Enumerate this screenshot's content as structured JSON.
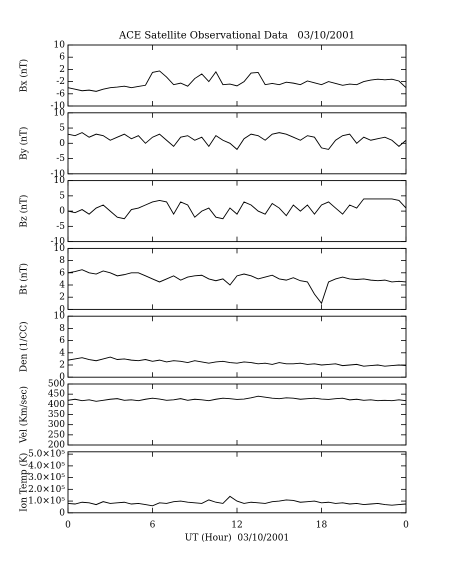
{
  "chart_data": [
    {
      "type": "line",
      "title": "ACE Satellite Observational Data   03/10/2001",
      "ylabel": "Bx (nT)",
      "xlim": [
        0,
        24
      ],
      "ylim": [
        -10,
        10
      ],
      "yticks": [
        -10,
        -6,
        -2,
        2,
        6,
        10
      ],
      "color": "#000000",
      "x": [
        0,
        0.5,
        1,
        1.5,
        2,
        2.5,
        3,
        3.5,
        4,
        4.5,
        5,
        5.5,
        6,
        6.5,
        7,
        7.5,
        8,
        8.5,
        9,
        9.5,
        10,
        10.5,
        11,
        11.5,
        12,
        12.5,
        13,
        13.5,
        14,
        14.5,
        15,
        15.5,
        16,
        16.5,
        17,
        17.5,
        18,
        18.5,
        19,
        19.5,
        20,
        20.5,
        21,
        21.5,
        22,
        22.5,
        23,
        23.5,
        24
      ],
      "values": [
        -4,
        -4.5,
        -5,
        -4.8,
        -5.2,
        -4.5,
        -4,
        -3.8,
        -3.5,
        -4,
        -3.6,
        -3.2,
        1,
        1.5,
        -0.5,
        -3,
        -2.5,
        -3.5,
        -1,
        0.5,
        -2,
        1.2,
        -3,
        -2.8,
        -3.4,
        -2,
        0.8,
        1,
        -3,
        -2.6,
        -3,
        -2.2,
        -2.5,
        -3,
        -1.8,
        -2.4,
        -3,
        -2,
        -2.6,
        -3.2,
        -2.8,
        -3,
        -2,
        -1.5,
        -1.2,
        -1.4,
        -1.2,
        -1.8,
        -4
      ]
    },
    {
      "type": "line",
      "ylabel": "By (nT)",
      "xlim": [
        0,
        24
      ],
      "ylim": [
        -10,
        10
      ],
      "yticks": [
        -10,
        -5,
        0,
        5,
        10
      ],
      "color": "#000000",
      "x": [
        0,
        0.5,
        1,
        1.5,
        2,
        2.5,
        3,
        3.5,
        4,
        4.5,
        5,
        5.5,
        6,
        6.5,
        7,
        7.5,
        8,
        8.5,
        9,
        9.5,
        10,
        10.5,
        11,
        11.5,
        12,
        12.5,
        13,
        13.5,
        14,
        14.5,
        15,
        15.5,
        16,
        16.5,
        17,
        17.5,
        18,
        18.5,
        19,
        19.5,
        20,
        20.5,
        21,
        21.5,
        22,
        22.5,
        23,
        23.5,
        24
      ],
      "values": [
        3,
        2.5,
        3.5,
        2,
        3,
        2.5,
        1,
        2,
        3,
        1.5,
        2.5,
        0,
        2,
        3,
        1,
        -1,
        2,
        2.5,
        1,
        2,
        -1,
        2.5,
        1,
        0,
        -2,
        1.5,
        3,
        2.5,
        1,
        3,
        3.5,
        3,
        2,
        1,
        2.5,
        2,
        -1.5,
        -2,
        1,
        2.5,
        3,
        0,
        2,
        1,
        1.5,
        2,
        1,
        -1,
        1
      ]
    },
    {
      "type": "line",
      "ylabel": "Bz (nT)",
      "xlim": [
        0,
        24
      ],
      "ylim": [
        -10,
        10
      ],
      "yticks": [
        -10,
        -5,
        0,
        5,
        10
      ],
      "color": "#000000",
      "x": [
        0,
        0.5,
        1,
        1.5,
        2,
        2.5,
        3,
        3.5,
        4,
        4.5,
        5,
        5.5,
        6,
        6.5,
        7,
        7.5,
        8,
        8.5,
        9,
        9.5,
        10,
        10.5,
        11,
        11.5,
        12,
        12.5,
        13,
        13.5,
        14,
        14.5,
        15,
        15.5,
        16,
        16.5,
        17,
        17.5,
        18,
        18.5,
        19,
        19.5,
        20,
        20.5,
        21,
        21.5,
        22,
        22.5,
        23,
        23.5,
        24
      ],
      "values": [
        0,
        -0.5,
        0.5,
        -1,
        1,
        2,
        0,
        -2,
        -2.5,
        0.5,
        1,
        2,
        3,
        3.5,
        3,
        -1,
        3,
        2,
        -2,
        0,
        1,
        -2,
        -2.5,
        1,
        -1,
        3,
        2,
        0,
        -1,
        2.5,
        1,
        -1.5,
        2,
        0,
        2,
        -1,
        2,
        3,
        1,
        -1,
        2,
        1,
        4,
        4,
        4,
        4,
        4,
        3.5,
        1
      ]
    },
    {
      "type": "line",
      "ylabel": "Bt (nT)",
      "xlim": [
        0,
        24
      ],
      "ylim": [
        0,
        10
      ],
      "yticks": [
        0,
        2,
        4,
        6,
        8,
        10
      ],
      "color": "#000000",
      "x": [
        0,
        0.5,
        1,
        1.5,
        2,
        2.5,
        3,
        3.5,
        4,
        4.5,
        5,
        5.5,
        6,
        6.5,
        7,
        7.5,
        8,
        8.5,
        9,
        9.5,
        10,
        10.5,
        11,
        11.5,
        12,
        12.5,
        13,
        13.5,
        14,
        14.5,
        15,
        15.5,
        16,
        16.5,
        17,
        17.5,
        18,
        18.5,
        19,
        19.5,
        20,
        20.5,
        21,
        21.5,
        22,
        22.5,
        23,
        23.5,
        24
      ],
      "values": [
        6,
        6.2,
        6.5,
        6,
        5.8,
        6.3,
        6,
        5.5,
        5.7,
        6,
        6,
        5.5,
        5,
        4.5,
        5,
        5.5,
        4.8,
        5.3,
        5.5,
        5.6,
        5,
        4.7,
        5,
        4,
        5.5,
        5.8,
        5.5,
        5,
        5.3,
        5.6,
        5,
        4.8,
        5.2,
        4.7,
        4.5,
        2.5,
        1,
        4.5,
        5,
        5.3,
        5,
        4.9,
        5,
        4.8,
        4.7,
        4.8,
        4.5,
        4.6,
        4.5
      ]
    },
    {
      "type": "line",
      "ylabel": "Den (1/CC)",
      "xlim": [
        0,
        24
      ],
      "ylim": [
        0,
        10
      ],
      "yticks": [
        0,
        2,
        4,
        6,
        8,
        10
      ],
      "color": "#000000",
      "x": [
        0,
        0.5,
        1,
        1.5,
        2,
        2.5,
        3,
        3.5,
        4,
        4.5,
        5,
        5.5,
        6,
        6.5,
        7,
        7.5,
        8,
        8.5,
        9,
        9.5,
        10,
        10.5,
        11,
        11.5,
        12,
        12.5,
        13,
        13.5,
        14,
        14.5,
        15,
        15.5,
        16,
        16.5,
        17,
        17.5,
        18,
        18.5,
        19,
        19.5,
        20,
        20.5,
        21,
        21.5,
        22,
        22.5,
        23,
        23.5,
        24
      ],
      "values": [
        2.8,
        3,
        3.2,
        2.9,
        2.7,
        3,
        3.3,
        2.9,
        3,
        2.8,
        2.7,
        2.9,
        2.6,
        2.8,
        2.5,
        2.7,
        2.6,
        2.4,
        2.7,
        2.5,
        2.3,
        2.5,
        2.6,
        2.4,
        2.3,
        2.5,
        2.4,
        2.2,
        2.3,
        2.1,
        2.4,
        2.2,
        2.2,
        2.3,
        2.1,
        2.2,
        2,
        2.1,
        2.2,
        1.9,
        2,
        2.1,
        1.8,
        1.9,
        2,
        1.8,
        1.9,
        2,
        1.9
      ]
    },
    {
      "type": "line",
      "ylabel": "Vel (Km/sec)",
      "xlim": [
        0,
        24
      ],
      "ylim": [
        200,
        500
      ],
      "yticks": [
        200,
        250,
        300,
        350,
        400,
        450,
        500
      ],
      "color": "#000000",
      "x": [
        0,
        0.5,
        1,
        1.5,
        2,
        2.5,
        3,
        3.5,
        4,
        4.5,
        5,
        5.5,
        6,
        6.5,
        7,
        7.5,
        8,
        8.5,
        9,
        9.5,
        10,
        10.5,
        11,
        11.5,
        12,
        12.5,
        13,
        13.5,
        14,
        14.5,
        15,
        15.5,
        16,
        16.5,
        17,
        17.5,
        18,
        18.5,
        19,
        19.5,
        20,
        20.5,
        21,
        21.5,
        22,
        22.5,
        23,
        23.5,
        24
      ],
      "values": [
        420,
        425,
        418,
        422,
        415,
        420,
        425,
        428,
        420,
        422,
        418,
        425,
        430,
        426,
        420,
        422,
        428,
        420,
        425,
        422,
        418,
        425,
        430,
        428,
        424,
        426,
        432,
        440,
        435,
        430,
        428,
        432,
        430,
        425,
        428,
        430,
        426,
        424,
        428,
        430,
        422,
        425,
        420,
        422,
        418,
        420,
        418,
        422,
        418
      ]
    },
    {
      "type": "line",
      "ylabel": "Ion Temp (K)",
      "xlabel": "UT (Hour)  03/10/2001",
      "xlim": [
        0,
        24
      ],
      "xticks": [
        0,
        6,
        12,
        18,
        {
          "value": 24,
          "label": "0"
        }
      ],
      "ylim": [
        0,
        520000
      ],
      "yticks": [
        0,
        {
          "value": 100000,
          "label": "1.0×10⁵"
        },
        {
          "value": 200000,
          "label": "2.0×10⁵"
        },
        {
          "value": 300000,
          "label": "3.0×10⁵"
        },
        {
          "value": 400000,
          "label": "4.0×10⁵"
        },
        {
          "value": 500000,
          "label": "5.0×10⁵"
        }
      ],
      "color": "#000000",
      "x": [
        0,
        0.5,
        1,
        1.5,
        2,
        2.5,
        3,
        3.5,
        4,
        4.5,
        5,
        5.5,
        6,
        6.5,
        7,
        7.5,
        8,
        8.5,
        9,
        9.5,
        10,
        10.5,
        11,
        11.5,
        12,
        12.5,
        13,
        13.5,
        14,
        14.5,
        15,
        15.5,
        16,
        16.5,
        17,
        17.5,
        18,
        18.5,
        19,
        19.5,
        20,
        20.5,
        21,
        21.5,
        22,
        22.5,
        23,
        23.5,
        24
      ],
      "values": [
        80000,
        75000,
        90000,
        85000,
        70000,
        95000,
        80000,
        85000,
        90000,
        75000,
        80000,
        70000,
        60000,
        85000,
        80000,
        95000,
        100000,
        90000,
        85000,
        80000,
        110000,
        90000,
        80000,
        140000,
        100000,
        80000,
        90000,
        85000,
        80000,
        95000,
        100000,
        110000,
        105000,
        90000,
        95000,
        100000,
        85000,
        90000,
        80000,
        85000,
        75000,
        80000,
        70000,
        75000,
        80000,
        70000,
        65000,
        70000,
        75000
      ]
    }
  ]
}
